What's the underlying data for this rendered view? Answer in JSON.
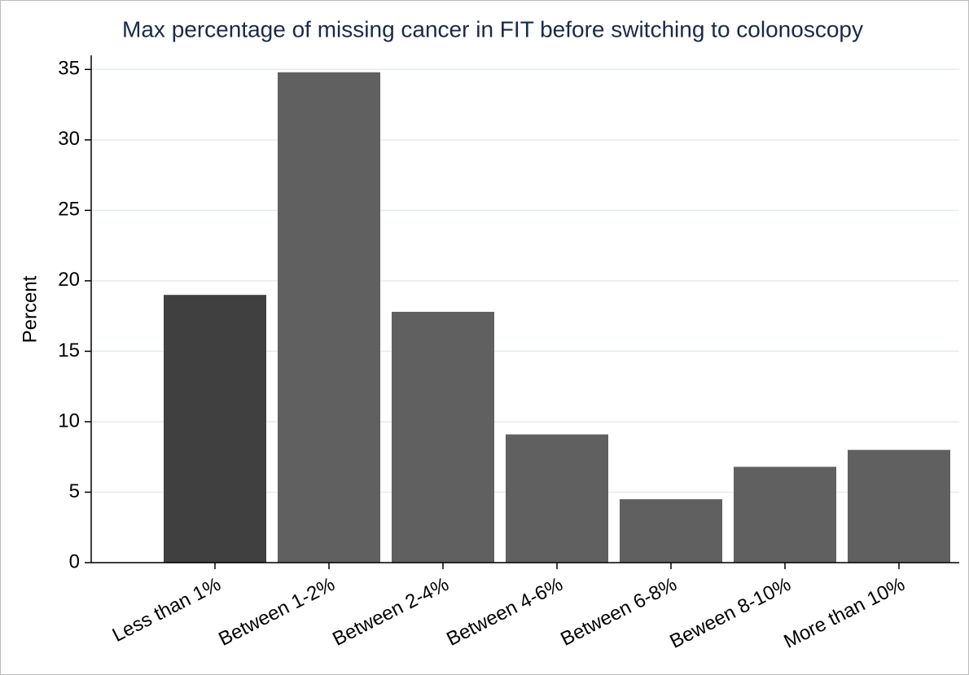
{
  "chart_data": {
    "type": "bar",
    "title": "Max percentage of missing cancer in FIT before switching to colonoscopy",
    "y_label": "Percent",
    "categories": [
      "Less than 1%",
      "Between 1-2%",
      "Between 2-4%",
      "Between 4-6%",
      "Between 6-8%",
      "Beween 8-10%",
      "More than 10%"
    ],
    "values": [
      19.0,
      34.8,
      17.8,
      9.1,
      4.5,
      6.8,
      8.0
    ],
    "colors": [
      "#404040",
      "#606060",
      "#606060",
      "#606060",
      "#606060",
      "#606060",
      "#606060"
    ],
    "ylim": [
      0,
      36
    ],
    "yticks": [
      0,
      5,
      10,
      15,
      20,
      25,
      30,
      35
    ],
    "grid": true
  }
}
